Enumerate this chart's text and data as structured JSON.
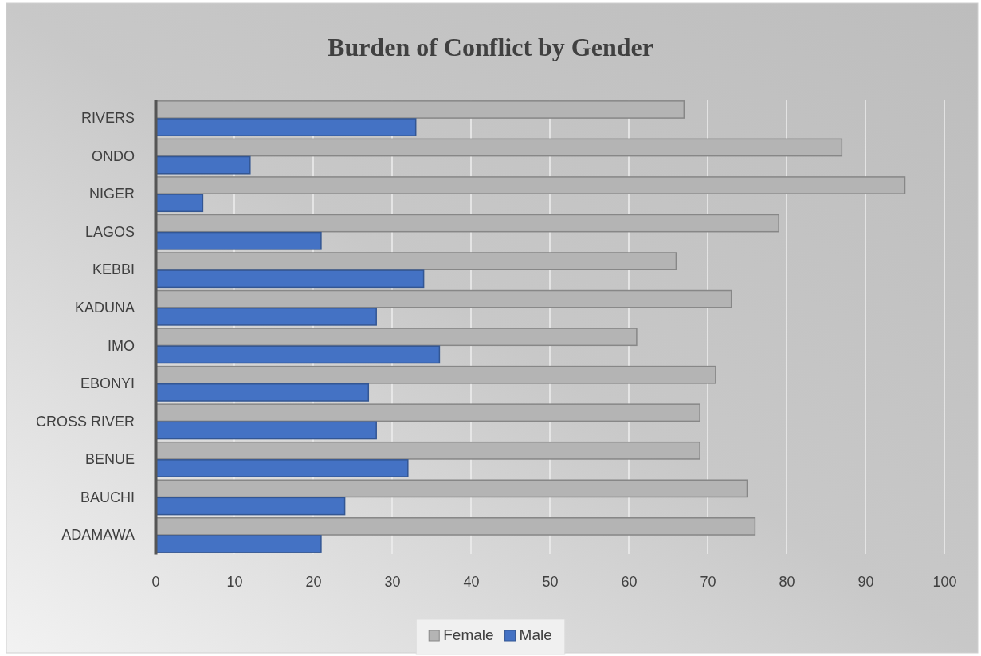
{
  "chart_data": {
    "type": "bar",
    "orientation": "horizontal",
    "title": "Burden of Conflict by Gender",
    "categories": [
      "RIVERS",
      "ONDO",
      "NIGER",
      "LAGOS",
      "KEBBI",
      "KADUNA",
      "IMO",
      "EBONYI",
      "CROSS RIVER",
      "BENUE",
      "BAUCHI",
      "ADAMAWA"
    ],
    "series": [
      {
        "name": "Female",
        "color": "#b4b4b4",
        "values": [
          67,
          87,
          95,
          79,
          66,
          73,
          61,
          71,
          69,
          69,
          75,
          76
        ]
      },
      {
        "name": "Male",
        "color": "#4472c4",
        "values": [
          33,
          12,
          6,
          21,
          34,
          28,
          36,
          27,
          28,
          32,
          24,
          21
        ]
      }
    ],
    "xlim": [
      0,
      100
    ],
    "xticks": [
      0,
      10,
      20,
      30,
      40,
      50,
      60,
      70,
      80,
      90,
      100
    ],
    "grid": "x",
    "legend": "bottom"
  }
}
